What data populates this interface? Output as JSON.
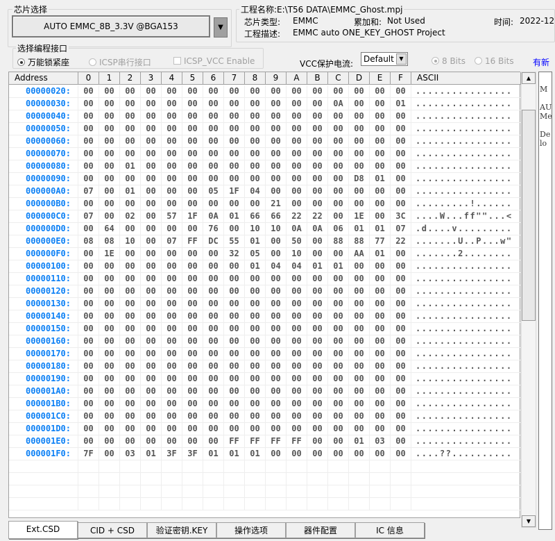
{
  "chip_select": {
    "title": "芯片选择",
    "value": "AUTO EMMC_8B_3.3V @BGA153"
  },
  "project": {
    "title": "工程名称:E:\\T56 DATA\\EMMC_Ghost.mpj",
    "type_label": "芯片类型:",
    "type_value": "EMMC",
    "checksum_label": "累加和:",
    "checksum_value": "Not Used",
    "time_label": "时间:",
    "time_value": "2022-12",
    "desc_label": "工程描述:",
    "desc_value": "EMMC auto ONE_KEY_GHOST Project"
  },
  "interface": {
    "title": "选择编程接口",
    "options": [
      {
        "label": "万能锁紧座",
        "selected": true,
        "enabled": true
      },
      {
        "label": "ICSP串行接口",
        "selected": false,
        "enabled": false
      }
    ],
    "icsp_vcc": {
      "label": "ICSP_VCC Enable",
      "checked": false,
      "enabled": false
    }
  },
  "vcc": {
    "label": "VCC保护电流:",
    "value": "Default"
  },
  "bits": [
    {
      "label": "8 Bits",
      "selected": true
    },
    {
      "label": "16 Bits",
      "selected": false
    }
  ],
  "link": {
    "label": "有新",
    "color": "#0000ff"
  },
  "table": {
    "headers": [
      "Address",
      "0",
      "1",
      "2",
      "3",
      "4",
      "5",
      "6",
      "7",
      "8",
      "9",
      "A",
      "B",
      "C",
      "D",
      "E",
      "F",
      "ASCII"
    ],
    "rows": [
      {
        "addr": "00000020:",
        "bytes": [
          "00",
          "00",
          "00",
          "00",
          "00",
          "00",
          "00",
          "00",
          "00",
          "00",
          "00",
          "00",
          "00",
          "00",
          "00",
          "00"
        ],
        "ascii": "................"
      },
      {
        "addr": "00000030:",
        "bytes": [
          "00",
          "00",
          "00",
          "00",
          "00",
          "00",
          "00",
          "00",
          "00",
          "00",
          "00",
          "00",
          "0A",
          "00",
          "00",
          "01"
        ],
        "ascii": "................"
      },
      {
        "addr": "00000040:",
        "bytes": [
          "00",
          "00",
          "00",
          "00",
          "00",
          "00",
          "00",
          "00",
          "00",
          "00",
          "00",
          "00",
          "00",
          "00",
          "00",
          "00"
        ],
        "ascii": "................"
      },
      {
        "addr": "00000050:",
        "bytes": [
          "00",
          "00",
          "00",
          "00",
          "00",
          "00",
          "00",
          "00",
          "00",
          "00",
          "00",
          "00",
          "00",
          "00",
          "00",
          "00"
        ],
        "ascii": "................"
      },
      {
        "addr": "00000060:",
        "bytes": [
          "00",
          "00",
          "00",
          "00",
          "00",
          "00",
          "00",
          "00",
          "00",
          "00",
          "00",
          "00",
          "00",
          "00",
          "00",
          "00"
        ],
        "ascii": "................"
      },
      {
        "addr": "00000070:",
        "bytes": [
          "00",
          "00",
          "00",
          "00",
          "00",
          "00",
          "00",
          "00",
          "00",
          "00",
          "00",
          "00",
          "00",
          "00",
          "00",
          "00"
        ],
        "ascii": "................"
      },
      {
        "addr": "00000080:",
        "bytes": [
          "00",
          "00",
          "01",
          "00",
          "00",
          "00",
          "00",
          "00",
          "00",
          "00",
          "00",
          "00",
          "00",
          "00",
          "00",
          "00"
        ],
        "ascii": "................"
      },
      {
        "addr": "00000090:",
        "bytes": [
          "00",
          "00",
          "00",
          "00",
          "00",
          "00",
          "00",
          "00",
          "00",
          "00",
          "00",
          "00",
          "00",
          "D8",
          "01",
          "00"
        ],
        "ascii": "................"
      },
      {
        "addr": "000000A0:",
        "bytes": [
          "07",
          "00",
          "01",
          "00",
          "00",
          "00",
          "05",
          "1F",
          "04",
          "00",
          "00",
          "00",
          "00",
          "00",
          "00",
          "00"
        ],
        "ascii": "................"
      },
      {
        "addr": "000000B0:",
        "bytes": [
          "00",
          "00",
          "00",
          "00",
          "00",
          "00",
          "00",
          "00",
          "00",
          "21",
          "00",
          "00",
          "00",
          "00",
          "00",
          "00"
        ],
        "ascii": ".........!......"
      },
      {
        "addr": "000000C0:",
        "bytes": [
          "07",
          "00",
          "02",
          "00",
          "57",
          "1F",
          "0A",
          "01",
          "66",
          "66",
          "22",
          "22",
          "00",
          "1E",
          "00",
          "3C"
        ],
        "ascii": "....W...ff\"\"...<"
      },
      {
        "addr": "000000D0:",
        "bytes": [
          "00",
          "64",
          "00",
          "00",
          "00",
          "00",
          "76",
          "00",
          "10",
          "10",
          "0A",
          "0A",
          "06",
          "01",
          "01",
          "07"
        ],
        "ascii": ".d....v........."
      },
      {
        "addr": "000000E0:",
        "bytes": [
          "08",
          "08",
          "10",
          "00",
          "07",
          "FF",
          "DC",
          "55",
          "01",
          "00",
          "50",
          "00",
          "88",
          "88",
          "77",
          "22"
        ],
        "ascii": ".......U..P...w\""
      },
      {
        "addr": "000000F0:",
        "bytes": [
          "00",
          "1E",
          "00",
          "00",
          "00",
          "00",
          "00",
          "32",
          "05",
          "00",
          "10",
          "00",
          "00",
          "AA",
          "01",
          "00"
        ],
        "ascii": ".......2........"
      },
      {
        "addr": "00000100:",
        "bytes": [
          "00",
          "00",
          "00",
          "00",
          "00",
          "00",
          "00",
          "00",
          "01",
          "04",
          "04",
          "01",
          "01",
          "00",
          "00",
          "00"
        ],
        "ascii": "................"
      },
      {
        "addr": "00000110:",
        "bytes": [
          "00",
          "00",
          "00",
          "00",
          "00",
          "00",
          "00",
          "00",
          "00",
          "00",
          "00",
          "00",
          "00",
          "00",
          "00",
          "00"
        ],
        "ascii": "................"
      },
      {
        "addr": "00000120:",
        "bytes": [
          "00",
          "00",
          "00",
          "00",
          "00",
          "00",
          "00",
          "00",
          "00",
          "00",
          "00",
          "00",
          "00",
          "00",
          "00",
          "00"
        ],
        "ascii": "................"
      },
      {
        "addr": "00000130:",
        "bytes": [
          "00",
          "00",
          "00",
          "00",
          "00",
          "00",
          "00",
          "00",
          "00",
          "00",
          "00",
          "00",
          "00",
          "00",
          "00",
          "00"
        ],
        "ascii": "................"
      },
      {
        "addr": "00000140:",
        "bytes": [
          "00",
          "00",
          "00",
          "00",
          "00",
          "00",
          "00",
          "00",
          "00",
          "00",
          "00",
          "00",
          "00",
          "00",
          "00",
          "00"
        ],
        "ascii": "................"
      },
      {
        "addr": "00000150:",
        "bytes": [
          "00",
          "00",
          "00",
          "00",
          "00",
          "00",
          "00",
          "00",
          "00",
          "00",
          "00",
          "00",
          "00",
          "00",
          "00",
          "00"
        ],
        "ascii": "................"
      },
      {
        "addr": "00000160:",
        "bytes": [
          "00",
          "00",
          "00",
          "00",
          "00",
          "00",
          "00",
          "00",
          "00",
          "00",
          "00",
          "00",
          "00",
          "00",
          "00",
          "00"
        ],
        "ascii": "................"
      },
      {
        "addr": "00000170:",
        "bytes": [
          "00",
          "00",
          "00",
          "00",
          "00",
          "00",
          "00",
          "00",
          "00",
          "00",
          "00",
          "00",
          "00",
          "00",
          "00",
          "00"
        ],
        "ascii": "................"
      },
      {
        "addr": "00000180:",
        "bytes": [
          "00",
          "00",
          "00",
          "00",
          "00",
          "00",
          "00",
          "00",
          "00",
          "00",
          "00",
          "00",
          "00",
          "00",
          "00",
          "00"
        ],
        "ascii": "................"
      },
      {
        "addr": "00000190:",
        "bytes": [
          "00",
          "00",
          "00",
          "00",
          "00",
          "00",
          "00",
          "00",
          "00",
          "00",
          "00",
          "00",
          "00",
          "00",
          "00",
          "00"
        ],
        "ascii": "................"
      },
      {
        "addr": "000001A0:",
        "bytes": [
          "00",
          "00",
          "00",
          "00",
          "00",
          "00",
          "00",
          "00",
          "00",
          "00",
          "00",
          "00",
          "00",
          "00",
          "00",
          "00"
        ],
        "ascii": "................"
      },
      {
        "addr": "000001B0:",
        "bytes": [
          "00",
          "00",
          "00",
          "00",
          "00",
          "00",
          "00",
          "00",
          "00",
          "00",
          "00",
          "00",
          "00",
          "00",
          "00",
          "00"
        ],
        "ascii": "................"
      },
      {
        "addr": "000001C0:",
        "bytes": [
          "00",
          "00",
          "00",
          "00",
          "00",
          "00",
          "00",
          "00",
          "00",
          "00",
          "00",
          "00",
          "00",
          "00",
          "00",
          "00"
        ],
        "ascii": "................"
      },
      {
        "addr": "000001D0:",
        "bytes": [
          "00",
          "00",
          "00",
          "00",
          "00",
          "00",
          "00",
          "00",
          "00",
          "00",
          "00",
          "00",
          "00",
          "00",
          "00",
          "00"
        ],
        "ascii": "................"
      },
      {
        "addr": "000001E0:",
        "bytes": [
          "00",
          "00",
          "00",
          "00",
          "00",
          "00",
          "00",
          "FF",
          "FF",
          "FF",
          "FF",
          "00",
          "00",
          "01",
          "03",
          "00"
        ],
        "ascii": "................"
      },
      {
        "addr": "000001F0:",
        "bytes": [
          "7F",
          "00",
          "03",
          "01",
          "3F",
          "3F",
          "01",
          "01",
          "01",
          "00",
          "00",
          "00",
          "00",
          "00",
          "00",
          "00"
        ],
        "ascii": "....??.........."
      }
    ]
  },
  "right_panel": {
    "text": "M\n\nAU\nMe\n\nDe\nlo"
  },
  "tabs": [
    {
      "label": "Ext.CSD",
      "selected": true
    },
    {
      "label": "CID + CSD"
    },
    {
      "label": "验证密钥.KEY"
    },
    {
      "label": "操作选项"
    },
    {
      "label": "器件配置"
    },
    {
      "label": "IC 信息"
    }
  ]
}
